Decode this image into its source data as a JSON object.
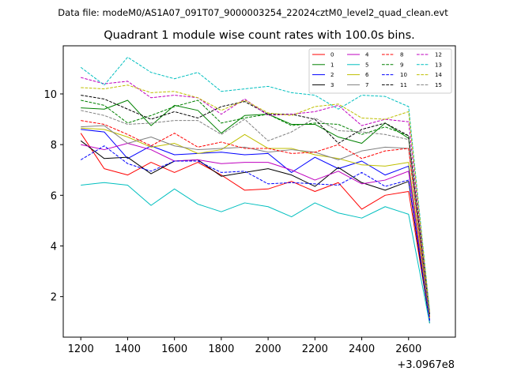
{
  "header": {
    "file_label": "Data file: modeM0/AS1A07_091T07_9000003254_22024cztM0_level2_quad_clean.evt"
  },
  "chart_data": {
    "type": "line",
    "title": "Quadrant 1 module wise count rates with 100.0s bins.",
    "xlabel": "",
    "ylabel": "",
    "x_offset_label": "+3.0967e8",
    "x": [
      1200,
      1300,
      1400,
      1500,
      1600,
      1700,
      1800,
      1900,
      2000,
      2100,
      2200,
      2300,
      2400,
      2500,
      2600,
      2690
    ],
    "xlim": [
      1125,
      2800
    ],
    "ylim": [
      0.4,
      11.9
    ],
    "x_ticks": [
      1200,
      1400,
      1600,
      1800,
      2000,
      2200,
      2400,
      2600
    ],
    "y_ticks": [
      2,
      4,
      6,
      8,
      10
    ],
    "legend": {
      "placement": "top-right",
      "columns": 4
    },
    "series": [
      {
        "name": "0",
        "color": "#ff0000",
        "dash": "solid",
        "values": [
          8.45,
          7.05,
          6.8,
          7.3,
          6.9,
          7.3,
          6.8,
          6.2,
          6.25,
          6.55,
          6.15,
          6.5,
          5.45,
          6.0,
          6.15,
          1.05
        ]
      },
      {
        "name": "1",
        "color": "#008000",
        "dash": "solid",
        "values": [
          9.45,
          9.4,
          9.75,
          8.75,
          9.55,
          9.35,
          8.45,
          9.15,
          9.2,
          8.8,
          8.8,
          8.3,
          8.05,
          8.85,
          8.25,
          1.3
        ]
      },
      {
        "name": "2",
        "color": "#0000ff",
        "dash": "solid",
        "values": [
          8.6,
          8.5,
          7.45,
          7.95,
          7.6,
          7.65,
          7.7,
          7.6,
          7.65,
          6.9,
          7.5,
          7.05,
          7.35,
          6.8,
          7.15,
          1.1
        ]
      },
      {
        "name": "3",
        "color": "#000000",
        "dash": "solid",
        "values": [
          8.15,
          7.45,
          7.5,
          6.85,
          7.35,
          7.4,
          6.75,
          6.9,
          7.05,
          6.8,
          6.35,
          7.1,
          6.5,
          6.2,
          6.55,
          0.95
        ]
      },
      {
        "name": "4",
        "color": "#bf00bf",
        "dash": "solid",
        "values": [
          8.0,
          7.8,
          8.05,
          7.8,
          7.35,
          7.4,
          7.25,
          7.3,
          7.3,
          7.0,
          6.6,
          6.95,
          6.45,
          6.6,
          6.95,
          1.05
        ]
      },
      {
        "name": "5",
        "color": "#00bfbf",
        "dash": "solid",
        "values": [
          6.4,
          6.5,
          6.4,
          5.6,
          6.25,
          5.65,
          5.35,
          5.7,
          5.55,
          5.15,
          5.7,
          5.3,
          5.1,
          5.55,
          5.25,
          0.95
        ]
      },
      {
        "name": "6",
        "color": "#bfbf00",
        "dash": "solid",
        "values": [
          8.65,
          8.6,
          8.3,
          7.9,
          8.05,
          7.65,
          7.8,
          8.4,
          7.85,
          7.85,
          7.6,
          7.45,
          7.2,
          7.15,
          7.3,
          1.15
        ]
      },
      {
        "name": "7",
        "color": "#808080",
        "dash": "solid",
        "values": [
          8.7,
          8.75,
          8.05,
          8.3,
          7.95,
          7.8,
          7.85,
          7.9,
          7.7,
          7.8,
          7.7,
          7.4,
          7.75,
          7.9,
          7.85,
          1.2
        ]
      },
      {
        "name": "8",
        "color": "#ff0000",
        "dash": "dashed",
        "values": [
          8.95,
          8.8,
          8.4,
          7.95,
          8.45,
          7.9,
          8.1,
          7.85,
          7.85,
          7.65,
          7.7,
          8.0,
          7.45,
          7.75,
          7.85,
          1.2
        ]
      },
      {
        "name": "9",
        "color": "#008000",
        "dash": "dashed",
        "values": [
          9.75,
          9.55,
          8.85,
          9.15,
          9.5,
          9.75,
          8.85,
          9.05,
          9.2,
          8.75,
          8.85,
          8.8,
          8.4,
          8.7,
          8.35,
          1.3
        ]
      },
      {
        "name": "10",
        "color": "#0000ff",
        "dash": "dashed",
        "values": [
          7.4,
          7.95,
          7.25,
          6.95,
          7.35,
          7.35,
          6.9,
          6.95,
          6.45,
          6.5,
          6.45,
          6.4,
          6.9,
          6.35,
          6.6,
          1.05
        ]
      },
      {
        "name": "11",
        "color": "#000000",
        "dash": "dashed",
        "values": [
          9.95,
          9.8,
          9.4,
          9.0,
          9.3,
          9.05,
          9.5,
          9.7,
          9.2,
          9.2,
          9.0,
          8.05,
          8.6,
          8.85,
          8.35,
          1.3
        ]
      },
      {
        "name": "12",
        "color": "#bf00bf",
        "dash": "dashed",
        "values": [
          10.65,
          10.4,
          10.5,
          9.85,
          9.95,
          9.85,
          9.2,
          9.8,
          9.15,
          9.2,
          9.3,
          9.55,
          8.75,
          9.0,
          8.9,
          1.4
        ]
      },
      {
        "name": "13",
        "color": "#00bfbf",
        "dash": "dashed",
        "values": [
          11.05,
          10.35,
          11.45,
          10.85,
          10.6,
          10.85,
          10.1,
          10.2,
          10.3,
          10.05,
          9.95,
          9.4,
          9.95,
          9.9,
          9.5,
          1.45
        ]
      },
      {
        "name": "14",
        "color": "#bfbf00",
        "dash": "dashed",
        "values": [
          10.25,
          10.2,
          10.35,
          10.05,
          10.1,
          9.85,
          9.35,
          9.75,
          9.25,
          9.15,
          9.5,
          9.6,
          9.05,
          9.0,
          9.3,
          1.4
        ]
      },
      {
        "name": "15",
        "color": "#808080",
        "dash": "dashed",
        "values": [
          9.35,
          9.15,
          8.8,
          8.85,
          8.95,
          8.95,
          8.4,
          9.0,
          8.15,
          8.5,
          9.05,
          8.55,
          8.5,
          8.4,
          8.2,
          1.25
        ]
      }
    ]
  }
}
